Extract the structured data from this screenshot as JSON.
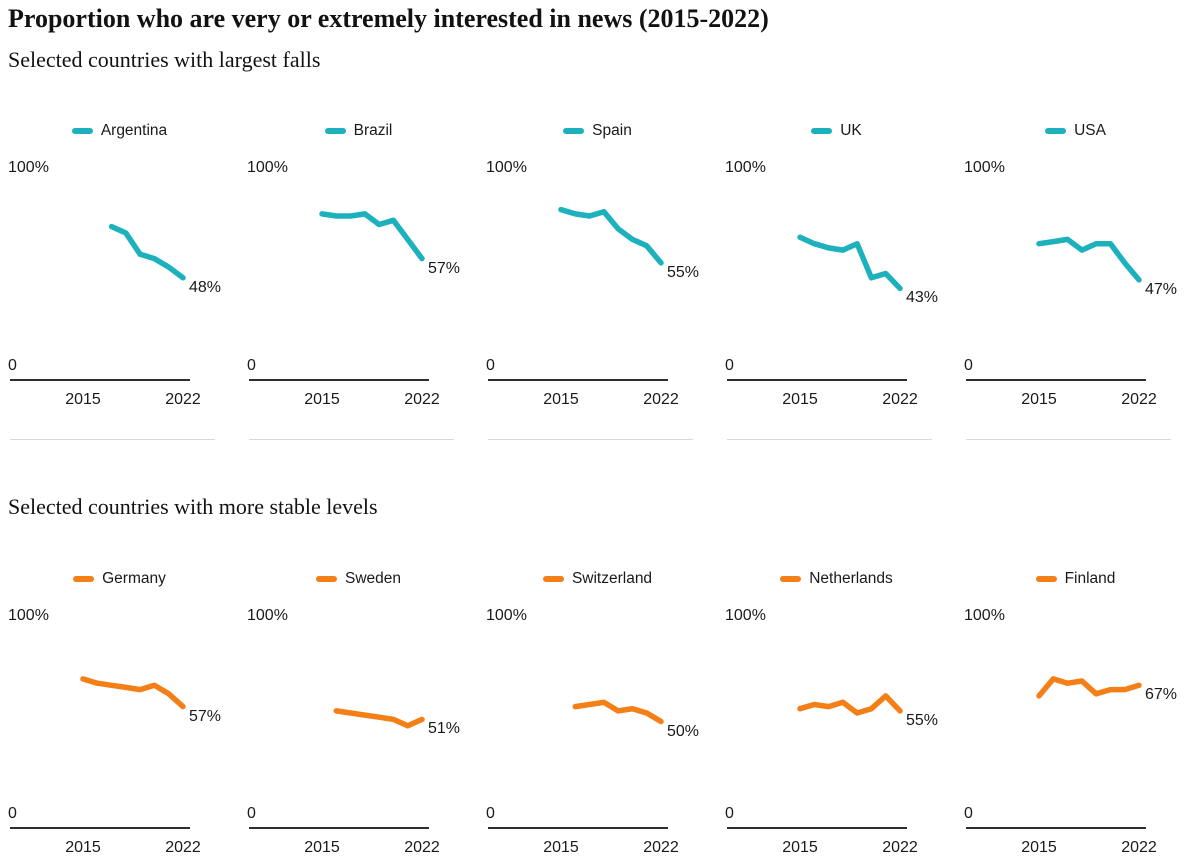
{
  "page_title": "Proportion who are very or extremely interested in news (2015-2022)",
  "axis": {
    "y_max_label": "100%",
    "y_zero_label": "0",
    "x_start_label": "2015",
    "x_end_label": "2022"
  },
  "colors": {
    "falls_line": "#1db1bd",
    "stable_line": "#f57f17",
    "axis_line": "#2e2e2e",
    "separator": "#d9d9d9",
    "text": "#1a1a1a",
    "title_text": "#121212"
  },
  "chart_data": [
    {
      "type": "line",
      "title": "Selected countries with largest falls",
      "line_color": "#1db1bd",
      "x_range": [
        2015,
        2022
      ],
      "x_tick_labels": [
        "2015",
        "2022"
      ],
      "ylim": [
        0,
        100
      ],
      "y_tick_labels": [
        "100%",
        "0"
      ],
      "grid": false,
      "legend_position": "top-center",
      "series": [
        {
          "name": "Argentina",
          "start_year": 2017,
          "values": [
            72,
            69,
            59,
            57,
            53,
            48
          ],
          "end_label": "48%"
        },
        {
          "name": "Brazil",
          "start_year": 2015,
          "values": [
            78,
            77,
            77,
            78,
            73,
            75,
            66,
            57
          ],
          "end_label": "57%"
        },
        {
          "name": "Spain",
          "start_year": 2015,
          "values": [
            80,
            78,
            77,
            79,
            71,
            66,
            63,
            55
          ],
          "end_label": "55%"
        },
        {
          "name": "UK",
          "start_year": 2015,
          "values": [
            67,
            64,
            62,
            61,
            64,
            48,
            50,
            43
          ],
          "end_label": "43%"
        },
        {
          "name": "USA",
          "start_year": 2015,
          "values": [
            64,
            65,
            66,
            61,
            64,
            64,
            55,
            47
          ],
          "end_label": "47%"
        }
      ]
    },
    {
      "type": "line",
      "title": "Selected countries with more stable levels",
      "line_color": "#f57f17",
      "x_range": [
        2015,
        2022
      ],
      "x_tick_labels": [
        "2015",
        "2022"
      ],
      "ylim": [
        0,
        100
      ],
      "y_tick_labels": [
        "100%",
        "0"
      ],
      "grid": false,
      "legend_position": "top-center",
      "series": [
        {
          "name": "Germany",
          "start_year": 2015,
          "values": [
            70,
            68,
            67,
            66,
            65,
            67,
            63,
            57
          ],
          "end_label": "57%"
        },
        {
          "name": "Sweden",
          "start_year": 2016,
          "values": [
            55,
            54,
            53,
            52,
            51,
            48,
            51
          ],
          "end_label": "51%"
        },
        {
          "name": "Switzerland",
          "start_year": 2016,
          "values": [
            57,
            58,
            59,
            55,
            56,
            54,
            50
          ],
          "end_label": "50%"
        },
        {
          "name": "Netherlands",
          "start_year": 2015,
          "values": [
            56,
            58,
            57,
            59,
            54,
            56,
            62,
            55
          ],
          "end_label": "55%"
        },
        {
          "name": "Finland",
          "start_year": 2015,
          "values": [
            62,
            70,
            68,
            69,
            63,
            65,
            65,
            67
          ],
          "end_label": "67%"
        }
      ]
    }
  ]
}
